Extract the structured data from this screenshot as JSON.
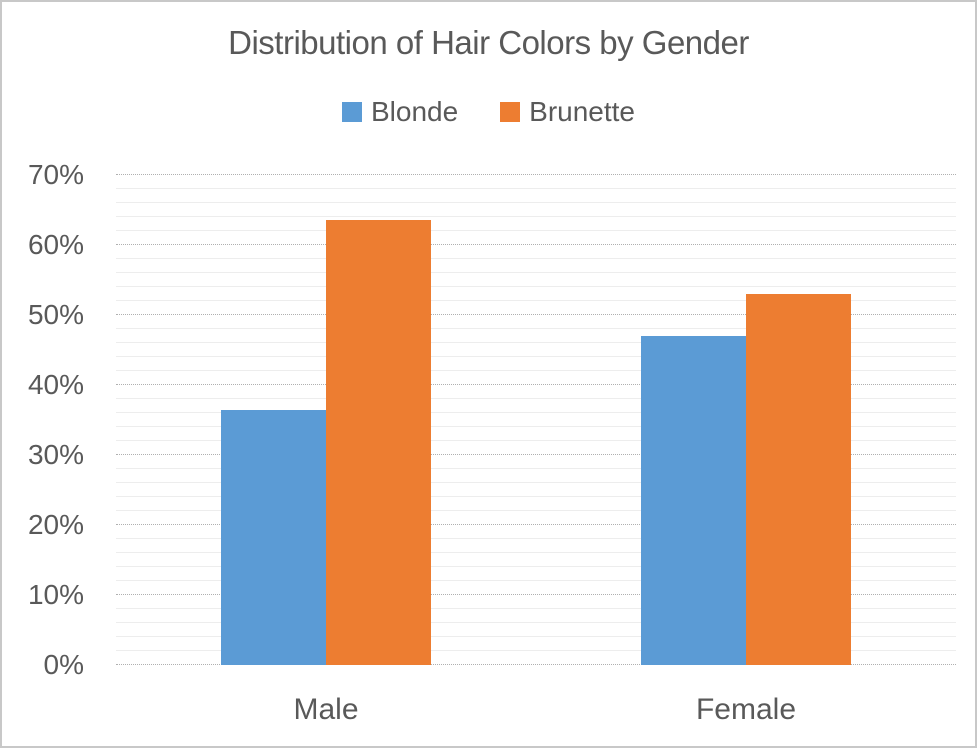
{
  "chart_data": {
    "type": "bar",
    "title": "Distribution of Hair Colors by Gender",
    "categories": [
      "Male",
      "Female"
    ],
    "series": [
      {
        "name": "Blonde",
        "color": "#5B9BD5",
        "values": [
          36.4,
          47.0
        ]
      },
      {
        "name": "Brunette",
        "color": "#ED7D31",
        "values": [
          63.6,
          53.0
        ]
      }
    ],
    "xlabel": "",
    "ylabel": "",
    "ylim": [
      0,
      70
    ],
    "major_step": 10,
    "minor_step": 2,
    "ytick_labels": [
      "0%",
      "10%",
      "20%",
      "30%",
      "40%",
      "50%",
      "60%",
      "70%"
    ],
    "grid": "horizontal: dotted major lines every 10%, faint solid minor lines every 2%",
    "legend_position": "top-center"
  },
  "colors": {
    "text": "#595959",
    "major_gridline": "#b0b0b0",
    "minor_gridline": "#ededed",
    "canvas_border": "#c8c8c8",
    "background": "#ffffff"
  }
}
